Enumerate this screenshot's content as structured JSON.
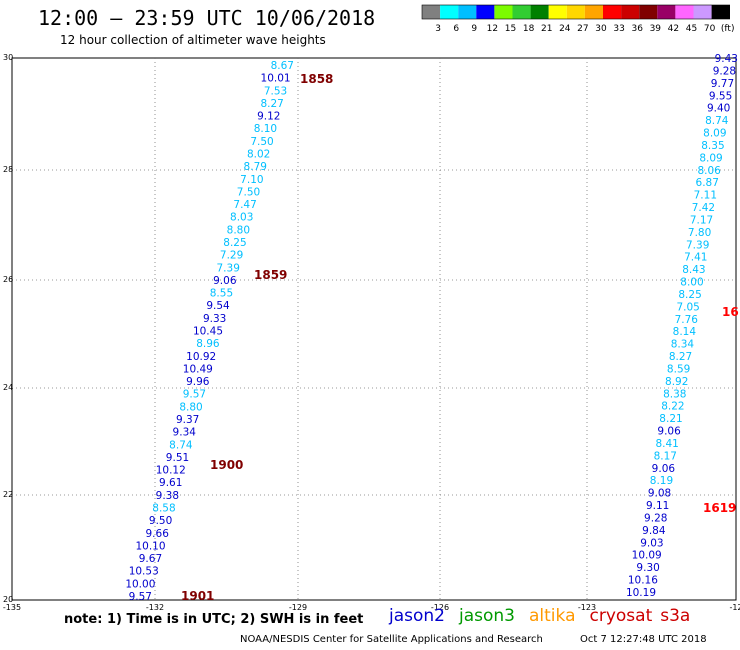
{
  "header": {
    "title": "12:00 – 23:59 UTC 10/06/2018",
    "subtitle": "12 hour collection of altimeter wave heights"
  },
  "colorbar": {
    "colors": [
      "#808080",
      "#00ffff",
      "#00bfff",
      "#0000ff",
      "#7cfc00",
      "#32cd32",
      "#008000",
      "#ffff00",
      "#ffd700",
      "#ffa500",
      "#ff0000",
      "#cc0000",
      "#800000",
      "#990066",
      "#ff66ff",
      "#cc99ff",
      "#000000"
    ],
    "labels": [
      "3",
      "6",
      "9",
      "12",
      "15",
      "18",
      "21",
      "24",
      "27",
      "30",
      "33",
      "36",
      "39",
      "42",
      "45",
      "70",
      "(ft)"
    ]
  },
  "map": {
    "x_ticks": [
      "-135",
      "-132",
      "-129",
      "-126",
      "-123",
      "-12"
    ],
    "y_ticks": [
      "30",
      "28",
      "26",
      "24",
      "22",
      "20"
    ]
  },
  "tracks": [
    {
      "x_start": 294,
      "x_end": 152,
      "y_start": 65,
      "y_end": 596,
      "values": [
        "8.67",
        "10.01",
        "7.53",
        "8.27",
        "9.12",
        "8.10",
        "7.50",
        "8.02",
        "8.79",
        "7.10",
        "7.50",
        "7.47",
        "8.03",
        "8.80",
        "8.25",
        "7.29",
        "7.39",
        "9.06",
        "8.55",
        "9.54",
        "9.33",
        "10.45",
        "8.96",
        "10.92",
        "10.49",
        "9.96",
        "9.57",
        "8.80",
        "9.37",
        "9.34",
        "8.74",
        "9.51",
        "10.12",
        "9.61",
        "9.38",
        "8.58",
        "9.50",
        "9.66",
        "10.10",
        "9.67",
        "10.53",
        "10.00",
        "9.57"
      ],
      "colors": [
        "#00bfff",
        "#0000cc",
        "#00bfff",
        "#00bfff",
        "#0000cc",
        "#00bfff",
        "#00bfff",
        "#00bfff",
        "#00bfff",
        "#00bfff",
        "#00bfff",
        "#00bfff",
        "#00bfff",
        "#00bfff",
        "#00bfff",
        "#00bfff",
        "#00bfff",
        "#0000cc",
        "#00bfff",
        "#0000cc",
        "#0000cc",
        "#0000cc",
        "#00bfff",
        "#0000cc",
        "#0000cc",
        "#0000cc",
        "#00bfff",
        "#00bfff",
        "#0000cc",
        "#0000cc",
        "#00bfff",
        "#0000cc",
        "#0000cc",
        "#0000cc",
        "#0000cc",
        "#00bfff",
        "#0000cc",
        "#0000cc",
        "#0000cc",
        "#0000cc",
        "#0000cc",
        "#0000cc",
        "#0000cc"
      ]
    },
    {
      "x_start": 738,
      "x_end": 656,
      "y_start": 58,
      "y_end": 592,
      "values": [
        "9.43",
        "9.28",
        "9.77",
        "9.55",
        "9.40",
        "8.74",
        "8.09",
        "8.35",
        "8.09",
        "8.06",
        "6.87",
        "7.11",
        "7.42",
        "7.17",
        "7.80",
        "7.39",
        "7.41",
        "8.43",
        "8.00",
        "8.25",
        "7.05",
        "7.76",
        "8.14",
        "8.34",
        "8.27",
        "8.59",
        "8.92",
        "8.38",
        "8.22",
        "8.21",
        "9.06",
        "8.41",
        "8.17",
        "9.06",
        "8.19",
        "9.08",
        "9.11",
        "9.28",
        "9.84",
        "9.03",
        "10.09",
        "9.30",
        "10.16",
        "10.19"
      ],
      "colors": [
        "#0000cc",
        "#0000cc",
        "#0000cc",
        "#0000cc",
        "#0000cc",
        "#00bfff",
        "#00bfff",
        "#00bfff",
        "#00bfff",
        "#00bfff",
        "#00bfff",
        "#00bfff",
        "#00bfff",
        "#00bfff",
        "#00bfff",
        "#00bfff",
        "#00bfff",
        "#00bfff",
        "#00bfff",
        "#00bfff",
        "#00bfff",
        "#00bfff",
        "#00bfff",
        "#00bfff",
        "#00bfff",
        "#00bfff",
        "#00bfff",
        "#00bfff",
        "#00bfff",
        "#00bfff",
        "#0000cc",
        "#00bfff",
        "#00bfff",
        "#0000cc",
        "#00bfff",
        "#0000cc",
        "#0000cc",
        "#0000cc",
        "#0000cc",
        "#0000cc",
        "#0000cc",
        "#0000cc",
        "#0000cc",
        "#0000cc"
      ]
    }
  ],
  "time_labels": [
    {
      "text": "1858",
      "color": "#800000"
    },
    {
      "text": "1859",
      "color": "#800000"
    },
    {
      "text": "1900",
      "color": "#800000"
    },
    {
      "text": "1901",
      "color": "#800000"
    },
    {
      "text": "16",
      "color": "#ff0000"
    },
    {
      "text": "1619",
      "color": "#ff0000"
    }
  ],
  "footer": {
    "note": "note:  1) Time is in UTC;  2) SWH is in feet",
    "legend": [
      {
        "name": "jason2",
        "color": "#0000cc"
      },
      {
        "name": "jason3",
        "color": "#009900"
      },
      {
        "name": "altika",
        "color": "#ff9900"
      },
      {
        "name": "cryosat",
        "color": "#cc0000"
      },
      {
        "name": "s3a",
        "color": "#cc0000"
      }
    ],
    "credit": "NOAA/NESDIS Center for Satellite Applications and Research",
    "timestamp": "Oct  7 12:27:48 UTC 2018"
  }
}
